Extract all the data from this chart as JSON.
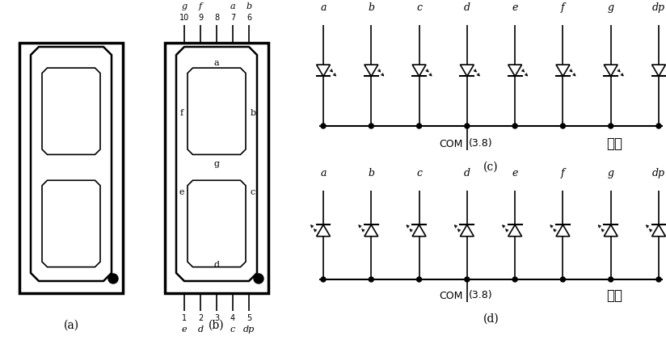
{
  "bg_color": "#ffffff",
  "line_color": "#000000",
  "segment_labels": [
    "a",
    "b",
    "c",
    "d",
    "e",
    "f",
    "g",
    "dp"
  ],
  "com_label": "COM",
  "com_voltage": "(3.8)",
  "label_c": "(c)",
  "label_d": "(d)",
  "label_a": "(a)",
  "label_b": "(b)",
  "cathode_label": "共阴",
  "anode_label": "共阳",
  "pin_top_letters": [
    "g",
    "f",
    "",
    "a",
    "b"
  ],
  "pin_top_nums": [
    "10",
    "9",
    "8",
    "7",
    "6"
  ],
  "pin_bot_letters": [
    "e",
    "d",
    "",
    "c",
    "dp"
  ],
  "pin_bot_nums": [
    "1",
    "2",
    "3",
    "4",
    "5"
  ],
  "fig_w": 8.24,
  "fig_h": 4.21,
  "dpi": 100
}
